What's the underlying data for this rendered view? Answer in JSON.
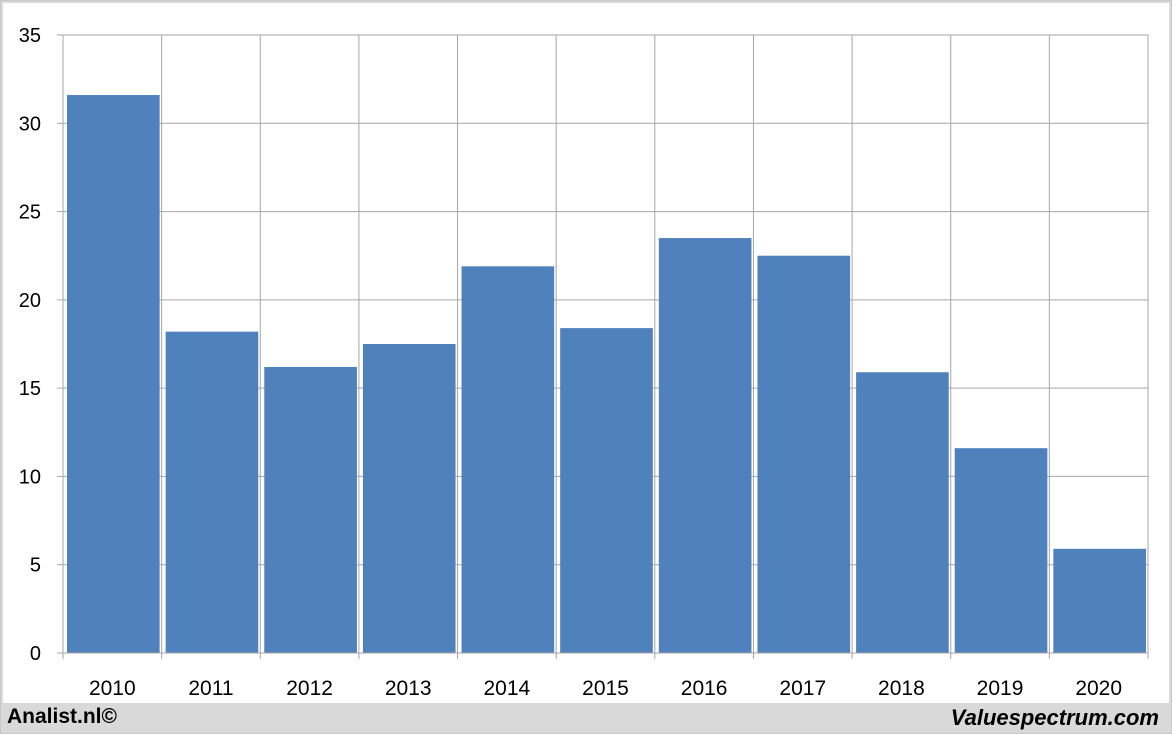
{
  "footer": {
    "left_credit": "Analist.nl©",
    "right_credit": "Valuespectrum.com"
  },
  "chart_data": {
    "type": "bar",
    "categories": [
      "2010",
      "2011",
      "2012",
      "2013",
      "2014",
      "2015",
      "2016",
      "2017",
      "2018",
      "2019",
      "2020"
    ],
    "values": [
      31.6,
      18.2,
      16.2,
      17.5,
      21.9,
      18.4,
      23.5,
      22.5,
      15.9,
      11.6,
      5.9
    ],
    "y_ticks": [
      0,
      5,
      10,
      15,
      20,
      25,
      30,
      35
    ],
    "ylim": [
      0,
      35
    ],
    "title": "",
    "xlabel": "",
    "ylabel": "",
    "grid": true,
    "bar_color": "#4f81bd",
    "grid_color": "#a6a6a6"
  }
}
